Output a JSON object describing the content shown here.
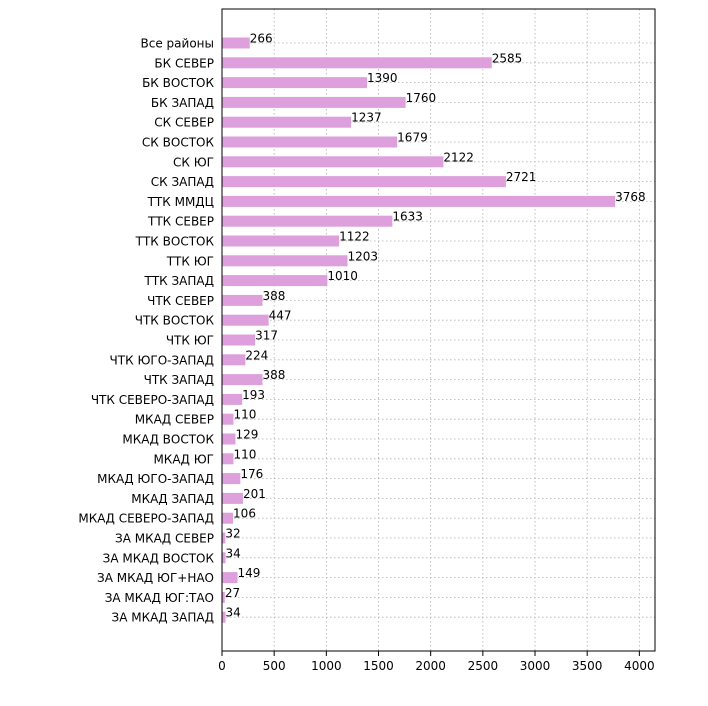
{
  "chart_data": {
    "type": "bar",
    "orientation": "horizontal",
    "title": "",
    "xlabel": "",
    "ylabel": "",
    "xlim": [
      0,
      4150
    ],
    "xticks": [
      0,
      500,
      1000,
      1500,
      2000,
      2500,
      3000,
      3500,
      4000
    ],
    "grid": true,
    "bar_color": "#dda0dd",
    "categories": [
      "Все районы",
      "БК СЕВЕР",
      "БК ВОСТОК",
      "БК ЗАПАД",
      "СК СЕВЕР",
      "СК ВОСТОК",
      "СК ЮГ",
      "СК ЗАПАД",
      "ТТК ММДЦ",
      "ТТК СЕВЕР",
      "ТТК ВОСТОК",
      "ТТК ЮГ",
      "ТТК ЗАПАД",
      "ЧТК СЕВЕР",
      "ЧТК ВОСТОК",
      "ЧТК ЮГ",
      "ЧТК ЮГО-ЗАПАД",
      "ЧТК ЗАПАД",
      "ЧТК СЕВЕРО-ЗАПАД",
      "МКАД СЕВЕР",
      "МКАД ВОСТОК",
      "МКАД ЮГ",
      "МКАД ЮГО-ЗАПАД",
      "МКАД ЗАПАД",
      "МКАД СЕВЕРО-ЗАПАД",
      "ЗА МКАД СЕВЕР",
      "ЗА МКАД ВОСТОК",
      "ЗА МКАД ЮГ+НАО",
      "ЗА МКАД ЮГ:ТАО",
      "ЗА МКАД ЗАПАД"
    ],
    "values": [
      266,
      2585,
      1390,
      1760,
      1237,
      1679,
      2122,
      2721,
      3768,
      1633,
      1122,
      1203,
      1010,
      388,
      447,
      317,
      224,
      388,
      193,
      110,
      129,
      110,
      176,
      201,
      106,
      32,
      34,
      149,
      27,
      34
    ]
  }
}
